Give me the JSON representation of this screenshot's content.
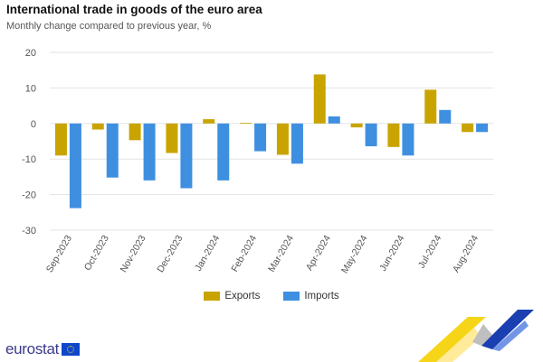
{
  "header": {
    "title": "International trade in goods of the euro area",
    "subtitle": "Monthly change compared to previous year, %"
  },
  "footer": {
    "logo_text": "eurostat"
  },
  "colors": {
    "exports": "#c9a400",
    "imports": "#3f8fe0",
    "grid": "#e3e3e3",
    "axis_text": "#555555"
  },
  "chart_data": {
    "type": "bar",
    "title": "International trade in goods of the euro area",
    "subtitle": "Monthly change compared to previous year, %",
    "xlabel": "",
    "ylabel": "",
    "categories": [
      "Sep-2023",
      "Oct-2023",
      "Nov-2023",
      "Dec-2023",
      "Jan-2024",
      "Feb-2024",
      "Mar-2024",
      "Apr-2024",
      "May-2024",
      "Jun-2024",
      "Jul-2024",
      "Aug-2024"
    ],
    "series": [
      {
        "name": "Exports",
        "values": [
          -9.0,
          -1.7,
          -4.7,
          -8.3,
          1.2,
          0.2,
          -8.8,
          13.8,
          -1.1,
          -6.6,
          9.5,
          -2.4
        ]
      },
      {
        "name": "Imports",
        "values": [
          -23.8,
          -15.2,
          -16.0,
          -18.2,
          -16.0,
          -7.8,
          -11.3,
          2.0,
          -6.4,
          -9.0,
          3.8,
          -2.4
        ]
      }
    ],
    "ylim": [
      -30,
      20
    ],
    "yticks": [
      -30,
      -20,
      -10,
      0,
      10,
      20
    ],
    "grid": true,
    "legend": "bottom-center"
  }
}
